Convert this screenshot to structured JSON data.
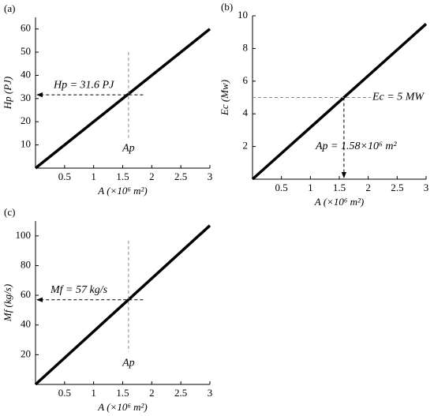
{
  "chart_data": [
    {
      "type": "line",
      "label": "(a)",
      "xlabel": "A (×10⁶ m²)",
      "ylabel": "Hp (PJ)",
      "x": [
        0,
        3
      ],
      "values": [
        0,
        60
      ],
      "color": "#000000",
      "xlim": [
        0,
        3
      ],
      "xticks": [
        0.5,
        1,
        1.5,
        2,
        2.5,
        3
      ],
      "ylim": [
        0,
        65
      ],
      "yticks": [
        10,
        20,
        30,
        40,
        50,
        60
      ],
      "guide": {
        "x": 1.6,
        "y": 31.6,
        "arrow": "left"
      },
      "annotations": [
        "Hp = 31.6 PJ",
        "Ap"
      ]
    },
    {
      "type": "line",
      "label": "(b)",
      "xlabel": "A (×10⁶ m²)",
      "ylabel": "Ec (Mw)",
      "x": [
        0,
        3
      ],
      "values": [
        0,
        9.5
      ],
      "color": "#000000",
      "xlim": [
        0,
        3
      ],
      "xticks": [
        0.5,
        1,
        1.5,
        2,
        2.5,
        3
      ],
      "ylim": [
        0,
        10
      ],
      "yticks": [
        2,
        4,
        6,
        8,
        10
      ],
      "guide": {
        "x": 1.58,
        "y": 5,
        "arrow": "down"
      },
      "annotations": [
        "Ec = 5 MW",
        "Ap = 1.58×10⁶ m²"
      ]
    },
    {
      "type": "line",
      "label": "(c)",
      "xlabel": "A (×10⁶ m²)",
      "ylabel": "Mf (kg/s)",
      "x": [
        0,
        3
      ],
      "values": [
        0,
        107
      ],
      "color": "#000000",
      "xlim": [
        0,
        3
      ],
      "xticks": [
        0.5,
        1,
        1.5,
        2,
        2.5,
        3
      ],
      "ylim": [
        0,
        110
      ],
      "yticks": [
        20,
        40,
        60,
        80,
        100
      ],
      "guide": {
        "x": 1.6,
        "y": 57,
        "arrow": "left"
      },
      "annotations": [
        "Mf = 57 kg/s",
        "Ap"
      ]
    }
  ]
}
